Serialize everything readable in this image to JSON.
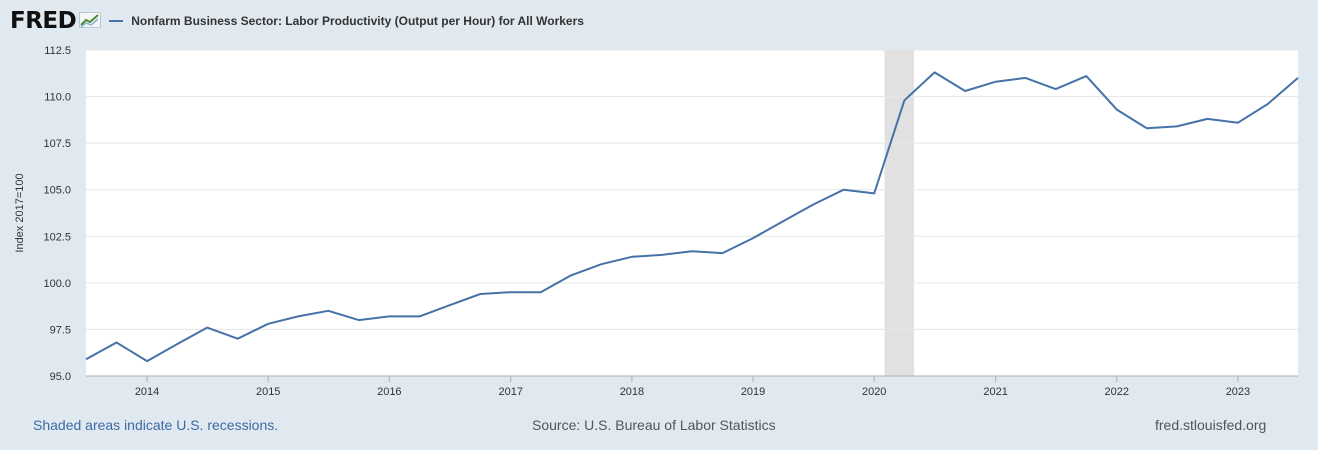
{
  "header": {
    "logo": "FRED",
    "series_title": "Nonfarm Business Sector: Labor Productivity (Output per Hour) for All Workers"
  },
  "footer": {
    "note": "Shaded areas indicate U.S. recessions.",
    "source": "Source: U.S. Bureau of Labor Statistics",
    "site": "fred.stlouisfed.org"
  },
  "colors": {
    "series": "#4572a7",
    "recession": "#e1e1e1",
    "background": "#e1e9f0",
    "grid": "#e6e6e6"
  },
  "chart_data": {
    "type": "line",
    "ylabel": "Index 2017=100",
    "ylim": [
      95.0,
      112.5
    ],
    "yticks": [
      "95.0",
      "97.5",
      "100.0",
      "102.5",
      "105.0",
      "107.5",
      "110.0",
      "112.5"
    ],
    "xticks": [
      "2014",
      "2015",
      "2016",
      "2017",
      "2018",
      "2019",
      "2020",
      "2021",
      "2022",
      "2023"
    ],
    "xlim": [
      "2013-07-01",
      "2023-07-01"
    ],
    "recession": [
      "2020-02-01",
      "2020-04-30"
    ],
    "grid": true,
    "series": [
      {
        "name": "Nonfarm Business Sector: Labor Productivity (Output per Hour) for All Workers",
        "x": [
          "2013-07-01",
          "2013-10-01",
          "2014-01-01",
          "2014-04-01",
          "2014-07-01",
          "2014-10-01",
          "2015-01-01",
          "2015-04-01",
          "2015-07-01",
          "2015-10-01",
          "2016-01-01",
          "2016-04-01",
          "2016-07-01",
          "2016-10-01",
          "2017-01-01",
          "2017-04-01",
          "2017-07-01",
          "2017-10-01",
          "2018-01-01",
          "2018-04-01",
          "2018-07-01",
          "2018-10-01",
          "2019-01-01",
          "2019-04-01",
          "2019-07-01",
          "2019-10-01",
          "2020-01-01",
          "2020-04-01",
          "2020-07-01",
          "2020-10-01",
          "2021-01-01",
          "2021-04-01",
          "2021-07-01",
          "2021-10-01",
          "2022-01-01",
          "2022-04-01",
          "2022-07-01",
          "2022-10-01",
          "2023-01-01",
          "2023-04-01",
          "2023-07-01"
        ],
        "values": [
          95.9,
          96.8,
          95.8,
          96.7,
          97.6,
          97.0,
          97.8,
          98.2,
          98.5,
          98.0,
          98.2,
          98.2,
          98.8,
          99.4,
          99.5,
          99.5,
          100.4,
          101.0,
          101.4,
          101.5,
          101.7,
          101.6,
          102.4,
          103.3,
          104.2,
          105.0,
          104.8,
          109.8,
          111.3,
          110.3,
          110.8,
          111.0,
          110.4,
          111.1,
          109.3,
          108.3,
          108.4,
          108.8,
          108.6,
          109.6,
          111.0
        ]
      }
    ]
  }
}
